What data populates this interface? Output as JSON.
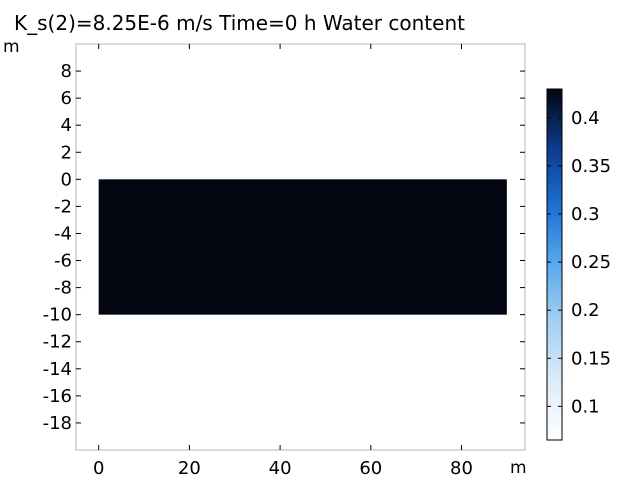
{
  "title": "K_s(2)=8.25E-6 m/s Time=0 h Water content",
  "colors": {
    "field": "#030611",
    "frame": "#b4b4b4",
    "background": "#ffffff"
  },
  "chart_data": {
    "type": "heatmap",
    "title": "K_s(2)=8.25E-6 m/s Time=0 h Water content",
    "xlabel": "m",
    "ylabel": "m",
    "xlim": [
      -5,
      94
    ],
    "ylim": [
      -20,
      10
    ],
    "x_ticks": [
      0,
      20,
      40,
      60,
      80
    ],
    "x_tick_labels": [
      "0",
      "20",
      "40",
      "60",
      "80"
    ],
    "y_ticks": [
      8,
      6,
      4,
      2,
      0,
      -2,
      -4,
      -6,
      -8,
      -10,
      -12,
      -14,
      -16,
      -18
    ],
    "y_tick_labels": [
      "8",
      "6",
      "4",
      "2",
      "0",
      "-2",
      "-4",
      "-6",
      "-8",
      "-10",
      "-12",
      "-14",
      "-16",
      "-18"
    ],
    "grid": false,
    "domain": {
      "x": [
        0,
        90
      ],
      "y": [
        -10,
        0
      ],
      "value": 0.43
    },
    "colorbar": {
      "range": [
        0.065,
        0.43
      ],
      "ticks": [
        0.4,
        0.35,
        0.3,
        0.25,
        0.2,
        0.15,
        0.1
      ],
      "tick_labels": [
        "0.4",
        "0.35",
        "0.3",
        "0.25",
        "0.2",
        "0.15",
        "0.1"
      ],
      "stops": [
        "#ffffff",
        "#dcecfa",
        "#a6d0f3",
        "#5aa9ec",
        "#1d6fd3",
        "#0b3b8c",
        "#030611"
      ]
    }
  }
}
